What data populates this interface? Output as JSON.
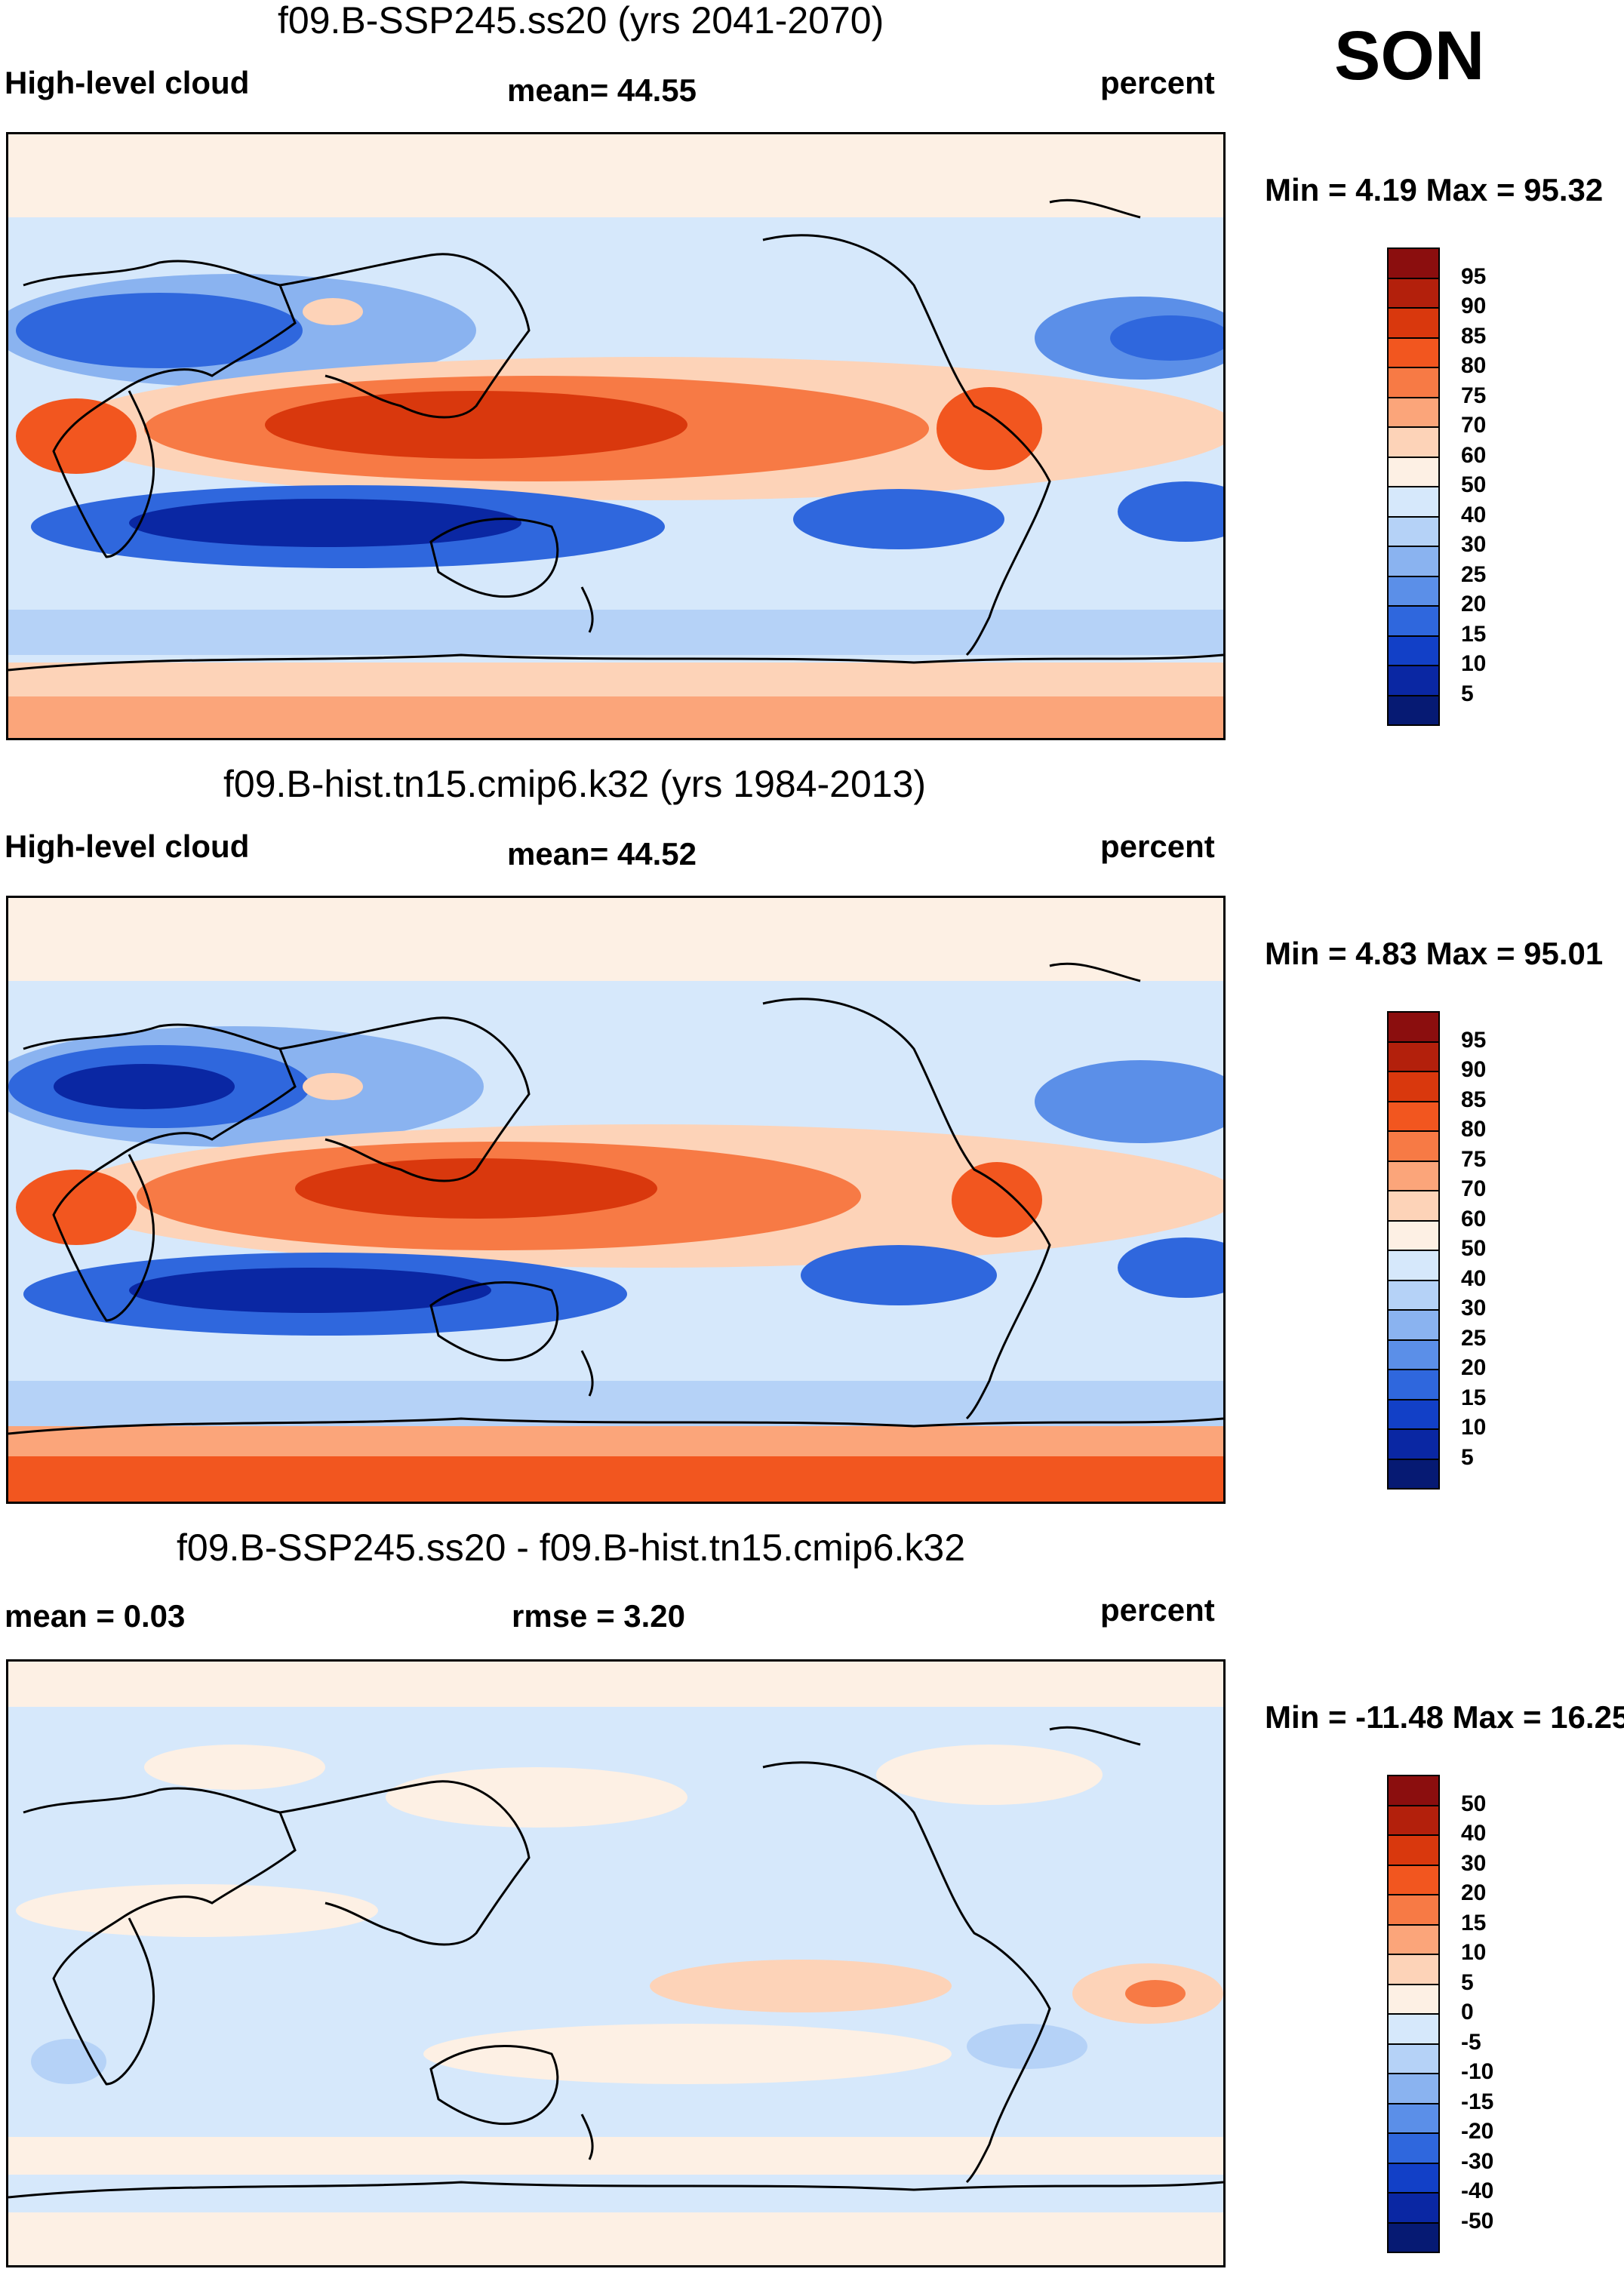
{
  "season": "SON",
  "panels": [
    {
      "title": "f09.B-SSP245.ss20 (yrs 2041-2070)",
      "left_label": "High-level cloud",
      "center_label": "mean=  44.55",
      "right_label": "percent",
      "minmax": "Min =   4.19 Max =  95.32",
      "colorbar_labels": [
        "95",
        "90",
        "85",
        "80",
        "75",
        "70",
        "60",
        "50",
        "40",
        "30",
        "25",
        "20",
        "15",
        "10",
        "5"
      ]
    },
    {
      "title": "f09.B-hist.tn15.cmip6.k32 (yrs 1984-2013)",
      "left_label": "High-level cloud",
      "center_label": "mean=  44.52",
      "right_label": "percent",
      "minmax": "Min =   4.83 Max =  95.01",
      "colorbar_labels": [
        "95",
        "90",
        "85",
        "80",
        "75",
        "70",
        "60",
        "50",
        "40",
        "30",
        "25",
        "20",
        "15",
        "10",
        "5"
      ]
    },
    {
      "title": "f09.B-SSP245.ss20 - f09.B-hist.tn15.cmip6.k32",
      "left_label": "mean =    0.03",
      "center_label": "rmse =    3.20",
      "right_label": "percent",
      "minmax": "Min = -11.48 Max =  16.25",
      "colorbar_labels": [
        "50",
        "40",
        "30",
        "20",
        "15",
        "10",
        "5",
        "0",
        "-5",
        "-10",
        "-15",
        "-20",
        "-30",
        "-40",
        "-50"
      ]
    }
  ],
  "colors": {
    "scale": [
      "#8b0e0e",
      "#b3200c",
      "#d9380d",
      "#f2561f",
      "#f77a45",
      "#fba57a",
      "#fdd3b8",
      "#fdf0e4",
      "#d6e8fb",
      "#b5d2f7",
      "#8ab3f0",
      "#5b8fe8",
      "#2f67dd",
      "#1240c7",
      "#0a27a3",
      "#061a73"
    ]
  }
}
